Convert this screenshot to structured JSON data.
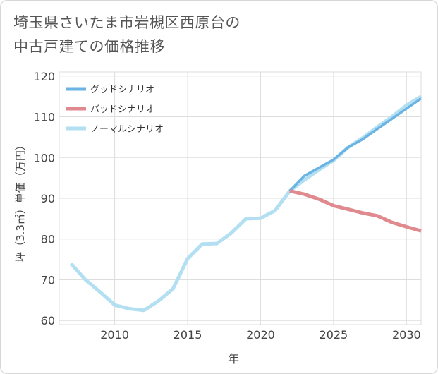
{
  "title_line1": "埼玉県さいたま市岩槻区西原台の",
  "title_line2": "中古戸建ての価格推移",
  "chart_data": {
    "type": "line",
    "xlabel": "年",
    "ylabel": "坪（3.3㎡）単価（万円）",
    "xlim": [
      2006.2,
      2031
    ],
    "ylim": [
      59,
      121
    ],
    "xticks": [
      2010,
      2015,
      2020,
      2025,
      2030
    ],
    "yticks": [
      60,
      70,
      80,
      90,
      100,
      110,
      120
    ],
    "grid": true,
    "legend_position": "top-left",
    "series": [
      {
        "name": "グッドシナリオ",
        "color": "#6bb3e3",
        "x": [
          2022,
          2023,
          2024,
          2025,
          2026,
          2027,
          2028,
          2029,
          2030,
          2031
        ],
        "values": [
          91.8,
          95.5,
          97.5,
          99.5,
          102.5,
          104.5,
          107,
          109.5,
          112,
          114.5
        ]
      },
      {
        "name": "バッドシナリオ",
        "color": "#e08a8f",
        "x": [
          2022,
          2023,
          2024,
          2025,
          2026,
          2027,
          2028,
          2029,
          2030,
          2031
        ],
        "values": [
          91.8,
          91,
          89.8,
          88.2,
          87.3,
          86.4,
          85.7,
          84.1,
          83,
          82
        ]
      },
      {
        "name": "ノーマルシナリオ",
        "color": "#b3dff2",
        "x": [
          2007,
          2008,
          2009,
          2010,
          2011,
          2012,
          2013,
          2014,
          2015,
          2016,
          2017,
          2018,
          2019,
          2020,
          2021,
          2022,
          2023,
          2024,
          2025,
          2026,
          2027,
          2028,
          2029,
          2030,
          2031
        ],
        "values": [
          74,
          70,
          67,
          63.8,
          62.9,
          62.5,
          64.8,
          67.8,
          75.2,
          78.8,
          78.9,
          81.5,
          85,
          85.1,
          87,
          91.8,
          94.5,
          97,
          99.3,
          102.5,
          104.8,
          107.5,
          110,
          112.8,
          115
        ]
      }
    ]
  }
}
